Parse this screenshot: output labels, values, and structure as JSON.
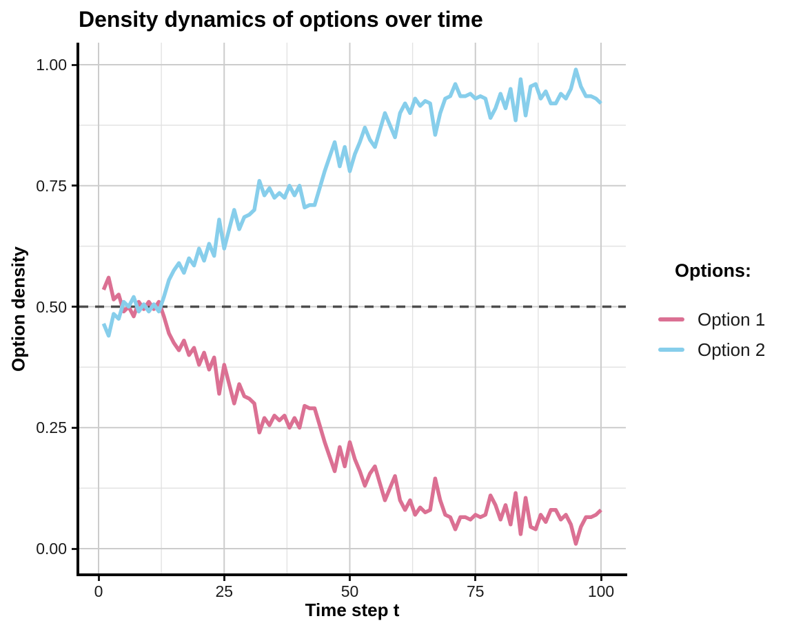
{
  "page": {
    "background": "#FFFFFF"
  },
  "chart_data": {
    "type": "line",
    "title": "Density dynamics of options over time",
    "xlabel": "Time step t",
    "ylabel": "Option density",
    "xlim": [
      0,
      100
    ],
    "ylim": [
      0,
      1
    ],
    "grid": "major+minor",
    "legend": {
      "title": "Options:",
      "position": "right"
    },
    "x_tick_values": [
      0,
      25,
      50,
      75,
      100
    ],
    "x_tick_labels": [
      "0",
      "25",
      "50",
      "75",
      "100"
    ],
    "x_minor_gridlines": [
      12.5,
      37.5,
      62.5,
      87.5
    ],
    "y_tick_values": [
      0,
      0.25,
      0.5,
      0.75,
      1
    ],
    "y_tick_labels": [
      "0.00",
      "0.25",
      "0.50",
      "0.75",
      "1.00"
    ],
    "y_minor_gridlines": [
      0.125,
      0.375,
      0.625,
      0.875
    ],
    "reference_line": {
      "y": 0.5,
      "style": "dashed",
      "color": "#4D4D4D"
    },
    "colors": {
      "grid_major": "#CCCCCC",
      "grid_minor": "#E2E2E2",
      "axis": "#000000",
      "tick_text": "#1A1A1A"
    },
    "x": [
      1,
      2,
      3,
      4,
      5,
      6,
      7,
      8,
      9,
      10,
      11,
      12,
      13,
      14,
      15,
      16,
      17,
      18,
      19,
      20,
      21,
      22,
      23,
      24,
      25,
      26,
      27,
      28,
      29,
      30,
      31,
      32,
      33,
      34,
      35,
      36,
      37,
      38,
      39,
      40,
      41,
      42,
      43,
      44,
      45,
      46,
      47,
      48,
      49,
      50,
      51,
      52,
      53,
      54,
      55,
      56,
      57,
      58,
      59,
      60,
      61,
      62,
      63,
      64,
      65,
      66,
      67,
      68,
      69,
      70,
      71,
      72,
      73,
      74,
      75,
      76,
      77,
      78,
      79,
      80,
      81,
      82,
      83,
      84,
      85,
      86,
      87,
      88,
      89,
      90,
      91,
      92,
      93,
      94,
      95,
      96,
      97,
      98,
      99,
      100
    ],
    "series": [
      {
        "name": "Option 1",
        "color": "#DB7093",
        "values": [
          0.535,
          0.56,
          0.515,
          0.525,
          0.49,
          0.5,
          0.48,
          0.51,
          0.495,
          0.51,
          0.495,
          0.51,
          0.48,
          0.445,
          0.425,
          0.41,
          0.43,
          0.4,
          0.415,
          0.38,
          0.405,
          0.37,
          0.395,
          0.32,
          0.38,
          0.34,
          0.3,
          0.34,
          0.315,
          0.31,
          0.3,
          0.24,
          0.27,
          0.255,
          0.275,
          0.265,
          0.275,
          0.25,
          0.27,
          0.25,
          0.295,
          0.29,
          0.29,
          0.255,
          0.22,
          0.19,
          0.16,
          0.21,
          0.17,
          0.22,
          0.185,
          0.16,
          0.13,
          0.155,
          0.17,
          0.135,
          0.1,
          0.125,
          0.15,
          0.1,
          0.08,
          0.1,
          0.07,
          0.085,
          0.075,
          0.08,
          0.145,
          0.1,
          0.07,
          0.065,
          0.04,
          0.065,
          0.065,
          0.06,
          0.07,
          0.065,
          0.07,
          0.11,
          0.09,
          0.06,
          0.09,
          0.05,
          0.115,
          0.03,
          0.105,
          0.045,
          0.04,
          0.07,
          0.055,
          0.08,
          0.08,
          0.06,
          0.07,
          0.05,
          0.01,
          0.045,
          0.065,
          0.065,
          0.07,
          0.08
        ]
      },
      {
        "name": "Option 2",
        "color": "#87CEEB",
        "values": [
          0.465,
          0.44,
          0.485,
          0.475,
          0.51,
          0.5,
          0.52,
          0.49,
          0.505,
          0.49,
          0.505,
          0.49,
          0.52,
          0.555,
          0.575,
          0.59,
          0.57,
          0.6,
          0.585,
          0.62,
          0.595,
          0.63,
          0.605,
          0.68,
          0.62,
          0.66,
          0.7,
          0.66,
          0.685,
          0.69,
          0.7,
          0.76,
          0.73,
          0.745,
          0.725,
          0.735,
          0.725,
          0.75,
          0.73,
          0.75,
          0.705,
          0.71,
          0.71,
          0.745,
          0.78,
          0.81,
          0.84,
          0.79,
          0.83,
          0.78,
          0.815,
          0.84,
          0.87,
          0.845,
          0.83,
          0.865,
          0.9,
          0.875,
          0.85,
          0.9,
          0.92,
          0.9,
          0.93,
          0.915,
          0.925,
          0.92,
          0.855,
          0.9,
          0.93,
          0.935,
          0.96,
          0.935,
          0.935,
          0.94,
          0.93,
          0.935,
          0.93,
          0.89,
          0.91,
          0.94,
          0.91,
          0.95,
          0.885,
          0.97,
          0.895,
          0.955,
          0.96,
          0.93,
          0.945,
          0.92,
          0.92,
          0.94,
          0.93,
          0.95,
          0.99,
          0.955,
          0.935,
          0.935,
          0.93,
          0.92
        ]
      }
    ]
  }
}
